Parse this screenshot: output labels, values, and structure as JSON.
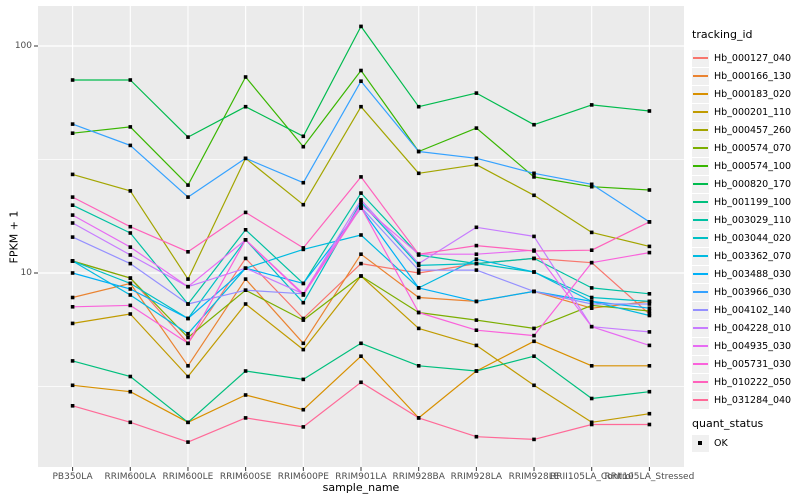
{
  "colors": {
    "panel_bg": "#EBEBEB",
    "gridline": "#FFFFFF",
    "tick_text": "#4D4D4D",
    "legend_key_bg": "#F0F0F0",
    "point": "#000000"
  },
  "chart_data": {
    "type": "line",
    "title": "",
    "xlabel": "sample_name",
    "ylabel": "FPKM + 1",
    "y_scale": "log10",
    "grid": "on",
    "legend_position": "right",
    "y_ticks": [
      {
        "value": 10,
        "label": "10"
      },
      {
        "value": 100,
        "label": "100"
      }
    ],
    "y_minor_gridlines": [
      3.162,
      31.623
    ],
    "ylim_approx": [
      1.5,
      140
    ],
    "categories": [
      "PB350LA",
      "RRIM600LA",
      "RRIM600LE",
      "RRIM600SE",
      "RRIM600PE",
      "RRIM901LA",
      "RRIM928BA",
      "RRIM928LA",
      "RRIM928LE",
      "RRII105LA_Control",
      "RRII105LA_Stressed"
    ],
    "series": [
      {
        "name": "Hb_000127_040",
        "color": "#F8766D",
        "values": [
          11.3,
          9.5,
          4.9,
          11.6,
          6.3,
          11.0,
          10.0,
          11.0,
          11.6,
          11.1,
          6.6
        ]
      },
      {
        "name": "Hb_000166_130",
        "color": "#EA8331",
        "values": [
          7.8,
          9.0,
          3.9,
          9.4,
          4.9,
          12.1,
          7.8,
          7.5,
          8.3,
          7.0,
          7.5
        ]
      },
      {
        "name": "Hb_000183_020",
        "color": "#D89000",
        "values": [
          3.2,
          3.0,
          2.2,
          2.9,
          2.5,
          4.3,
          2.3,
          3.7,
          5.0,
          3.9,
          3.9
        ]
      },
      {
        "name": "Hb_000201_110",
        "color": "#C09B00",
        "values": [
          6.0,
          6.6,
          3.5,
          7.3,
          4.6,
          9.7,
          5.7,
          4.8,
          3.2,
          2.2,
          2.4
        ]
      },
      {
        "name": "Hb_000457_260",
        "color": "#A3A500",
        "values": [
          27.2,
          23.0,
          9.4,
          32.0,
          20.0,
          54.0,
          27.5,
          30.0,
          22.0,
          15.1,
          13.1
        ]
      },
      {
        "name": "Hb_000574_070",
        "color": "#7CAE00",
        "values": [
          11.3,
          9.5,
          5.2,
          8.4,
          6.2,
          9.7,
          6.7,
          6.2,
          5.7,
          7.2,
          6.8
        ]
      },
      {
        "name": "Hb_000574_100",
        "color": "#39B600",
        "values": [
          41.3,
          44.0,
          24.4,
          73.0,
          36.0,
          78.0,
          34.3,
          43.5,
          26.5,
          24.0,
          23.2
        ]
      },
      {
        "name": "Hb_000820_170",
        "color": "#00BB4E",
        "values": [
          70.8,
          70.8,
          39.7,
          54.0,
          40.0,
          122.0,
          54.0,
          62.0,
          45.0,
          55.0,
          51.7
        ]
      },
      {
        "name": "Hb_001199_100",
        "color": "#00BF7D",
        "values": [
          4.1,
          3.5,
          2.2,
          3.7,
          3.4,
          4.9,
          3.9,
          3.7,
          4.3,
          2.8,
          3.0
        ]
      },
      {
        "name": "Hb_003029_110",
        "color": "#00C1A3",
        "values": [
          19.9,
          15.0,
          7.3,
          15.5,
          9.0,
          22.5,
          12.0,
          11.0,
          11.6,
          8.6,
          8.1
        ]
      },
      {
        "name": "Hb_003044_020",
        "color": "#00BFC4",
        "values": [
          11.3,
          9.0,
          6.3,
          14.0,
          7.4,
          20.5,
          10.8,
          11.0,
          10.1,
          7.8,
          7.5
        ]
      },
      {
        "name": "Hb_003362_070",
        "color": "#00BAE0",
        "values": [
          11.3,
          8.0,
          5.4,
          10.5,
          12.7,
          14.7,
          8.6,
          11.5,
          10.1,
          7.5,
          6.5
        ]
      },
      {
        "name": "Hb_003488_030",
        "color": "#00B0F6",
        "values": [
          10.0,
          8.5,
          6.3,
          10.5,
          9.0,
          19.3,
          8.6,
          7.5,
          8.3,
          7.5,
          7.0
        ]
      },
      {
        "name": "Hb_003966_030",
        "color": "#35A2FF",
        "values": [
          45.3,
          36.5,
          21.6,
          32.0,
          25.0,
          70.0,
          34.3,
          32.0,
          27.5,
          24.6,
          16.8
        ]
      },
      {
        "name": "Hb_004102_140",
        "color": "#9590FF",
        "values": [
          14.4,
          11.0,
          7.3,
          8.4,
          8.1,
          19.5,
          10.3,
          10.3,
          8.3,
          7.3,
          7.3
        ]
      },
      {
        "name": "Hb_004228_010",
        "color": "#C77CFF",
        "values": [
          16.6,
          12.0,
          8.7,
          10.5,
          8.1,
          21.0,
          11.0,
          15.9,
          14.5,
          5.8,
          5.5
        ]
      },
      {
        "name": "Hb_004935_030",
        "color": "#E76BF3",
        "values": [
          18.0,
          13.0,
          8.7,
          14.0,
          8.1,
          20.0,
          12.1,
          12.1,
          12.6,
          5.8,
          4.8
        ]
      },
      {
        "name": "Hb_005731_030",
        "color": "#FA62DB",
        "values": [
          7.1,
          7.2,
          4.9,
          14.0,
          8.0,
          19.5,
          6.7,
          5.6,
          5.3,
          11.1,
          12.3
        ]
      },
      {
        "name": "Hb_010222_050",
        "color": "#FF62BC",
        "values": [
          21.6,
          16.0,
          12.4,
          18.5,
          12.9,
          26.5,
          12.1,
          13.2,
          12.5,
          12.6,
          16.8
        ]
      },
      {
        "name": "Hb_031284_040",
        "color": "#FF6A98",
        "values": [
          2.6,
          2.2,
          1.8,
          2.3,
          2.1,
          3.3,
          2.3,
          1.9,
          1.85,
          2.15,
          2.15
        ]
      }
    ],
    "legend": {
      "color_title": "tracking_id",
      "shape_title": "quant_status",
      "shape_items": [
        {
          "label": "OK",
          "shape": "square",
          "color": "#000000"
        }
      ]
    }
  }
}
